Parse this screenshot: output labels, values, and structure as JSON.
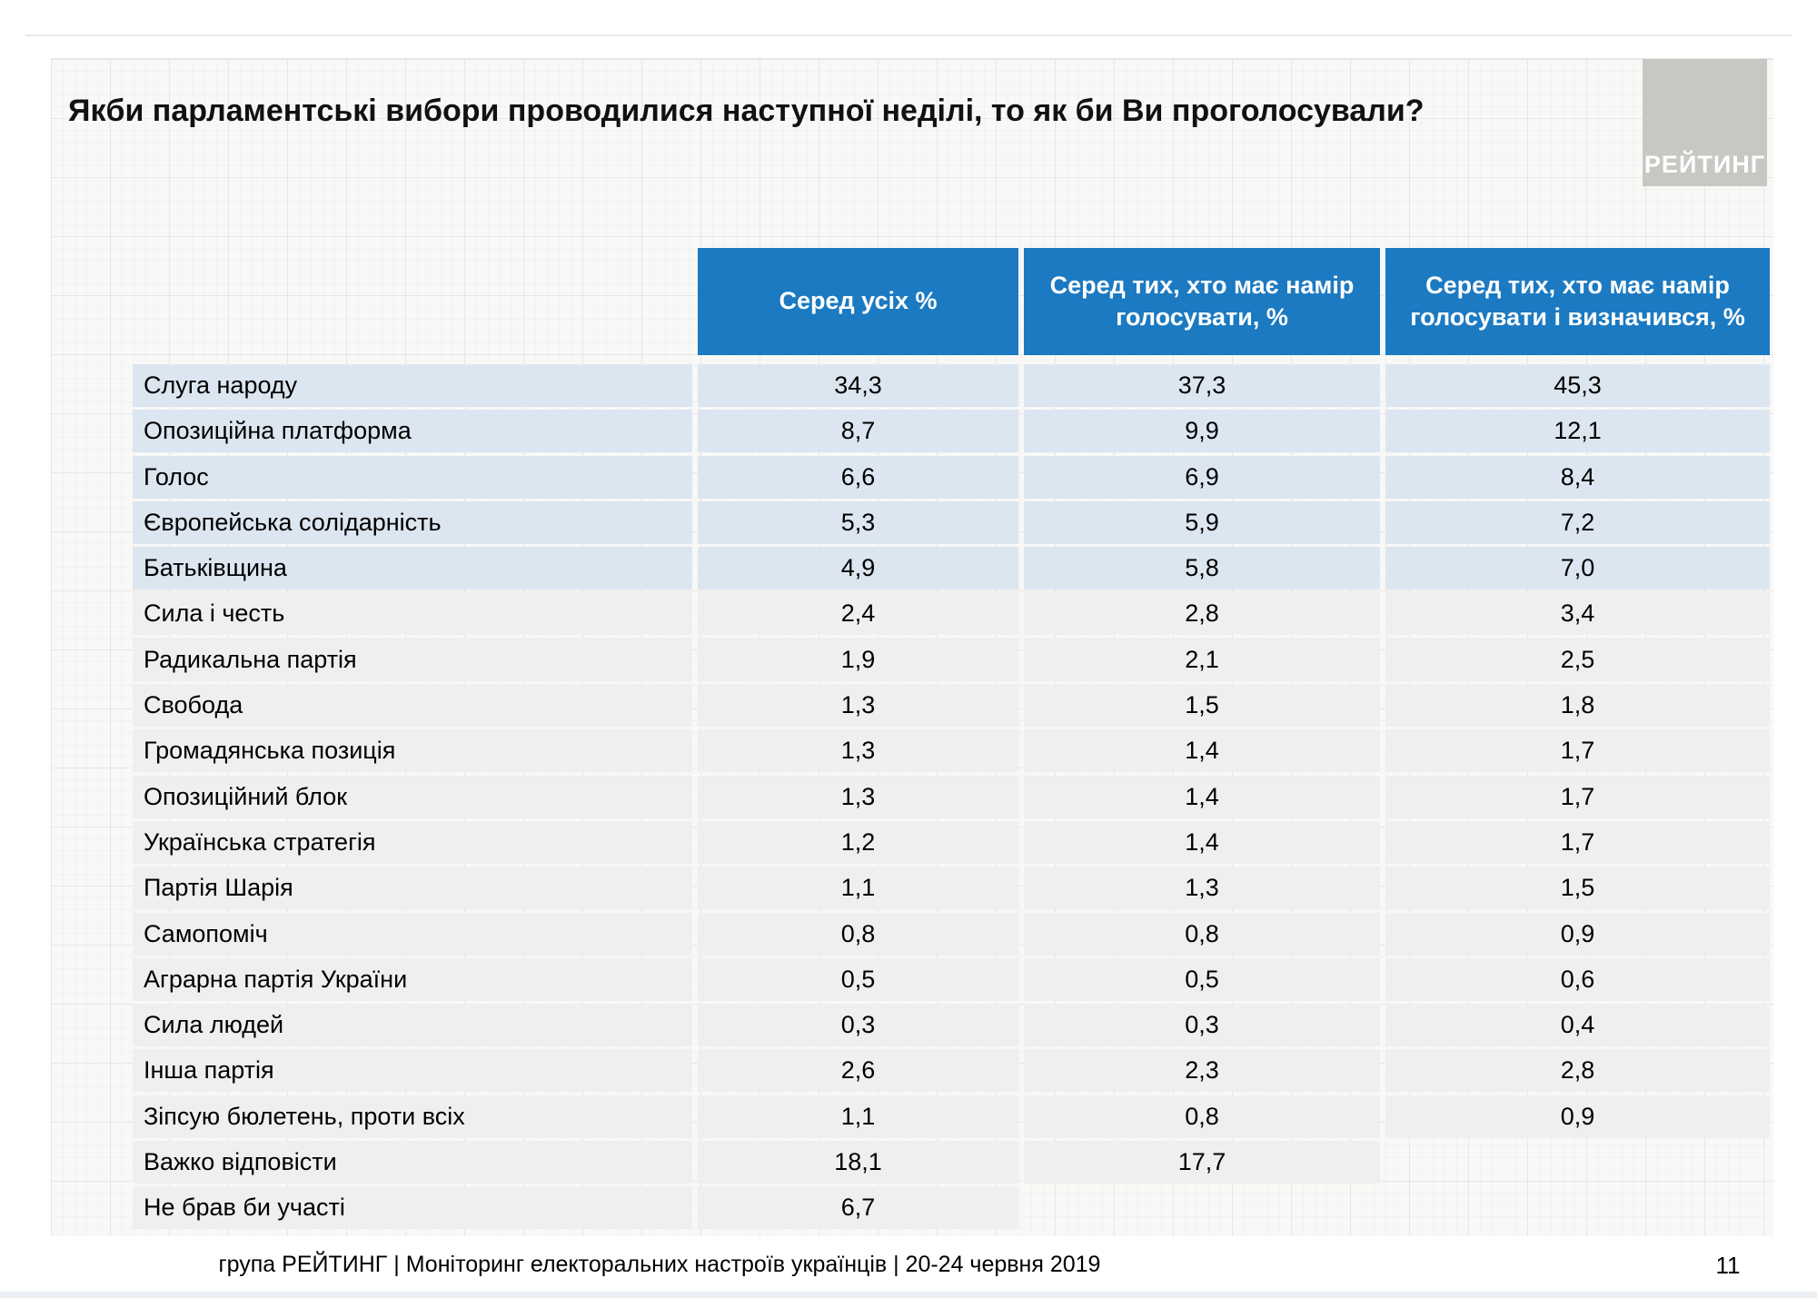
{
  "slide": {
    "title": "Якби парламентські вибори проводилися наступної неділі, то як би Ви проголосували?",
    "logo_text": "РЕЙТИНГ",
    "footer": "група РЕЙТИНГ | Моніторинг електоральних настроїв українців | 20-24 червня 2019",
    "page_number": "11"
  },
  "colors": {
    "header_blue": "#1b7ac1",
    "row_light_blue": "#dce6f1",
    "row_light_gray": "#efefef",
    "logo_gray": "#c8c7c4"
  },
  "table": {
    "columns": [
      "Серед усіх %",
      "Серед тих, хто має намір голосувати, %",
      "Серед тих, хто має намір голосувати і визначився, %"
    ],
    "rows": [
      {
        "label": "Слуга народу",
        "values": [
          "34,3",
          "37,3",
          "45,3"
        ]
      },
      {
        "label": "Опозиційна платформа",
        "values": [
          "8,7",
          "9,9",
          "12,1"
        ]
      },
      {
        "label": "Голос",
        "values": [
          "6,6",
          "6,9",
          "8,4"
        ]
      },
      {
        "label": "Європейська солідарність",
        "values": [
          "5,3",
          "5,9",
          "7,2"
        ]
      },
      {
        "label": "Батьківщина",
        "values": [
          "4,9",
          "5,8",
          "7,0"
        ]
      },
      {
        "label": "Сила і честь",
        "values": [
          "2,4",
          "2,8",
          "3,4"
        ]
      },
      {
        "label": "Радикальна партія",
        "values": [
          "1,9",
          "2,1",
          "2,5"
        ]
      },
      {
        "label": "Свобода",
        "values": [
          "1,3",
          "1,5",
          "1,8"
        ]
      },
      {
        "label": "Громадянська позиція",
        "values": [
          "1,3",
          "1,4",
          "1,7"
        ]
      },
      {
        "label": "Опозиційний блок",
        "values": [
          "1,3",
          "1,4",
          "1,7"
        ]
      },
      {
        "label": "Українська стратегія",
        "values": [
          "1,2",
          "1,4",
          "1,7"
        ]
      },
      {
        "label": "Партія Шарія",
        "values": [
          "1,1",
          "1,3",
          "1,5"
        ]
      },
      {
        "label": "Самопоміч",
        "values": [
          "0,8",
          "0,8",
          "0,9"
        ]
      },
      {
        "label": "Аграрна партія України",
        "values": [
          "0,5",
          "0,5",
          "0,6"
        ]
      },
      {
        "label": "Сила людей",
        "values": [
          "0,3",
          "0,3",
          "0,4"
        ]
      },
      {
        "label": "Інша партія",
        "values": [
          "2,6",
          "2,3",
          "2,8"
        ]
      },
      {
        "label": "Зіпсую бюлетень, проти всіх",
        "values": [
          "1,1",
          "0,8",
          "0,9"
        ]
      },
      {
        "label": "Важко відповісти",
        "values": [
          "18,1",
          "17,7"
        ]
      },
      {
        "label": "Не брав би участі",
        "values": [
          "6,7"
        ]
      }
    ]
  },
  "chart_data": {
    "type": "table",
    "title": "Якби парламентські вибори проводилися наступної неділі, то як би Ви проголосували?",
    "columns": [
      "Серед усіх %",
      "Серед тих, хто має намір голосувати, %",
      "Серед тих, хто має намір голосувати і визначився, %"
    ],
    "rows": [
      {
        "label": "Слуга народу",
        "among_all": 34.3,
        "intend_to_vote": 37.3,
        "intend_and_decided": 45.3
      },
      {
        "label": "Опозиційна платформа",
        "among_all": 8.7,
        "intend_to_vote": 9.9,
        "intend_and_decided": 12.1
      },
      {
        "label": "Голос",
        "among_all": 6.6,
        "intend_to_vote": 6.9,
        "intend_and_decided": 8.4
      },
      {
        "label": "Європейська солідарність",
        "among_all": 5.3,
        "intend_to_vote": 5.9,
        "intend_and_decided": 7.2
      },
      {
        "label": "Батьківщина",
        "among_all": 4.9,
        "intend_to_vote": 5.8,
        "intend_and_decided": 7.0
      },
      {
        "label": "Сила і честь",
        "among_all": 2.4,
        "intend_to_vote": 2.8,
        "intend_and_decided": 3.4
      },
      {
        "label": "Радикальна партія",
        "among_all": 1.9,
        "intend_to_vote": 2.1,
        "intend_and_decided": 2.5
      },
      {
        "label": "Свобода",
        "among_all": 1.3,
        "intend_to_vote": 1.5,
        "intend_and_decided": 1.8
      },
      {
        "label": "Громадянська позиція",
        "among_all": 1.3,
        "intend_to_vote": 1.4,
        "intend_and_decided": 1.7
      },
      {
        "label": "Опозиційний блок",
        "among_all": 1.3,
        "intend_to_vote": 1.4,
        "intend_and_decided": 1.7
      },
      {
        "label": "Українська стратегія",
        "among_all": 1.2,
        "intend_to_vote": 1.4,
        "intend_and_decided": 1.7
      },
      {
        "label": "Партія Шарія",
        "among_all": 1.1,
        "intend_to_vote": 1.3,
        "intend_and_decided": 1.5
      },
      {
        "label": "Самопоміч",
        "among_all": 0.8,
        "intend_to_vote": 0.8,
        "intend_and_decided": 0.9
      },
      {
        "label": "Аграрна партія України",
        "among_all": 0.5,
        "intend_to_vote": 0.5,
        "intend_and_decided": 0.6
      },
      {
        "label": "Сила людей",
        "among_all": 0.3,
        "intend_to_vote": 0.3,
        "intend_and_decided": 0.4
      },
      {
        "label": "Інша партія",
        "among_all": 2.6,
        "intend_to_vote": 2.3,
        "intend_and_decided": 2.8
      },
      {
        "label": "Зіпсую бюлетень, проти всіх",
        "among_all": 1.1,
        "intend_to_vote": 0.8,
        "intend_and_decided": 0.9
      },
      {
        "label": "Важко відповісти",
        "among_all": 18.1,
        "intend_to_vote": 17.7,
        "intend_and_decided": null
      },
      {
        "label": "Не брав би участі",
        "among_all": 6.7,
        "intend_to_vote": null,
        "intend_and_decided": null
      }
    ]
  }
}
